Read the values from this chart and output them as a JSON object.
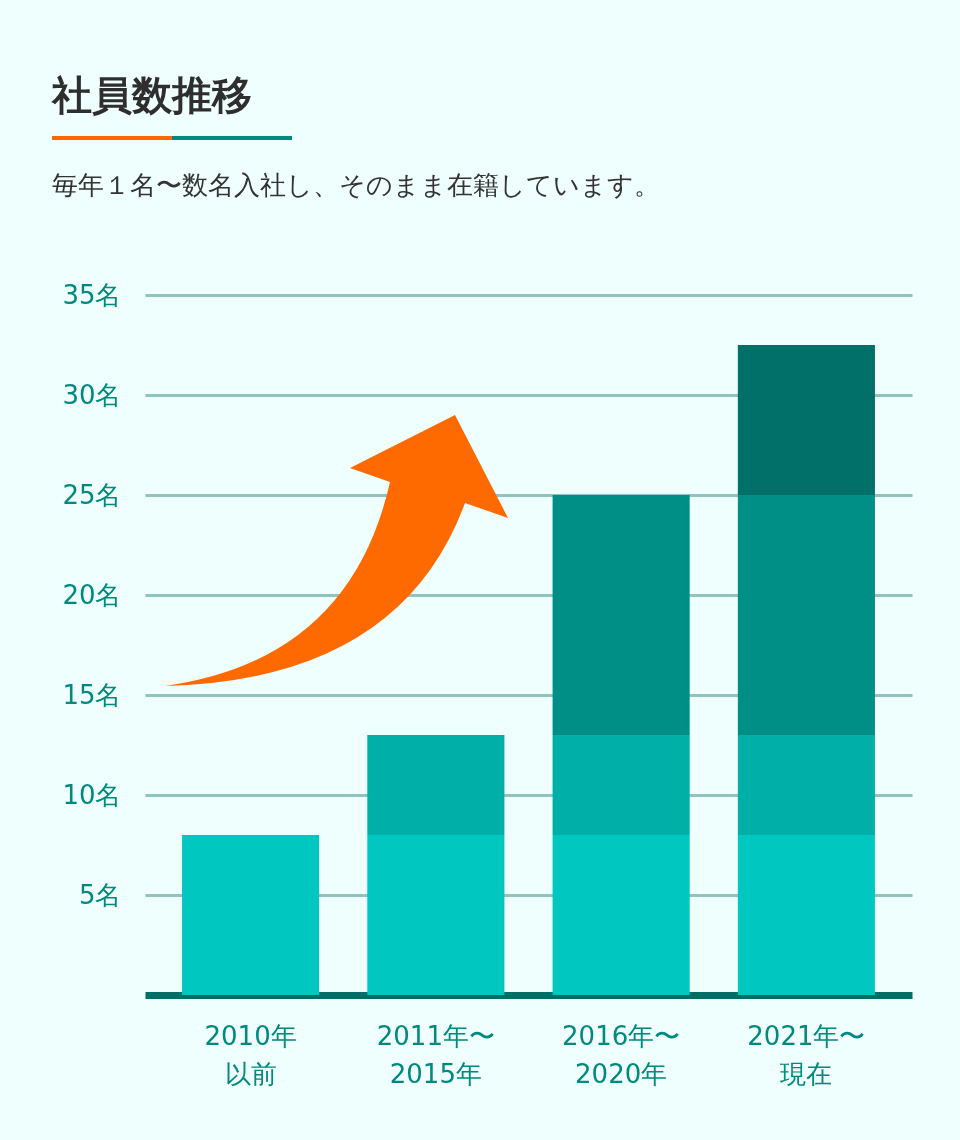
{
  "chart_data": {
    "type": "bar",
    "title": "社員数推移",
    "subtitle": "毎年１名〜数名入社し、そのまま在籍しています。",
    "categories": [
      "2010年以前",
      "2011年〜2015年",
      "2016年〜2020年",
      "2021年〜現在"
    ],
    "stacked": true,
    "series": [
      {
        "color": "#00c8c0",
        "values": [
          8,
          8,
          8,
          8
        ]
      },
      {
        "color": "#00b0a8",
        "values": [
          null,
          5,
          5,
          5
        ]
      },
      {
        "color": "#008f87",
        "values": [
          null,
          null,
          12,
          12
        ]
      },
      {
        "color": "#007068",
        "values": [
          null,
          null,
          null,
          7.5
        ]
      }
    ],
    "ylim": [
      0,
      35
    ],
    "yticks": [
      {
        "value": 5,
        "label": "5名"
      },
      {
        "value": 10,
        "label": "10名"
      },
      {
        "value": 15,
        "label": "15名"
      },
      {
        "value": 20,
        "label": "20名"
      },
      {
        "value": 25,
        "label": "25名"
      },
      {
        "value": 30,
        "label": "30名"
      },
      {
        "value": 35,
        "label": "35名"
      }
    ],
    "grid": "y",
    "legend": false
  }
}
